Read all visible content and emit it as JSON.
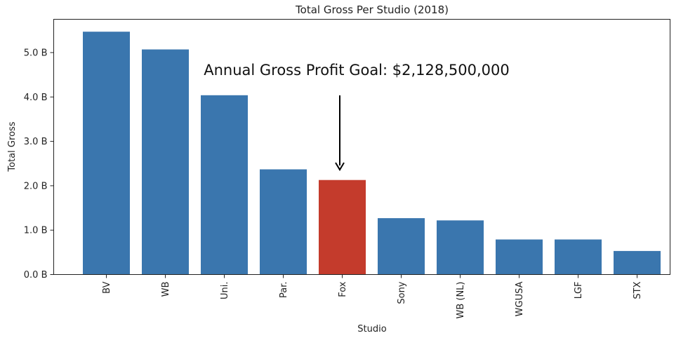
{
  "chart_data": {
    "type": "bar",
    "title": "Total Gross Per Studio (2018)",
    "xlabel": "Studio",
    "ylabel": "Total Gross",
    "categories": [
      "BV",
      "WB",
      "Uni.",
      "Par.",
      "Fox",
      "Sony",
      "WB (NL)",
      "WGUSA",
      "LGF",
      "STX"
    ],
    "values": [
      5.47,
      5.07,
      4.04,
      2.37,
      2.13,
      1.27,
      1.22,
      0.79,
      0.79,
      0.53
    ],
    "value_unit": "B",
    "ylim": [
      0,
      5.75
    ],
    "yticks": [
      0,
      1,
      2,
      3,
      4,
      5
    ],
    "ytick_labels": [
      "0.0 B",
      "1.0 B",
      "2.0 B",
      "3.0 B",
      "4.0 B",
      "5.0 B"
    ],
    "grid": false,
    "highlight_index": 4,
    "colors": {
      "bar": "#3a76ae",
      "highlight": "#c43b2c",
      "axis": "#222222"
    },
    "annotation": {
      "text": "Annual Gross Profit Goal: $2,128,500,000",
      "arrow_target_index": 4
    }
  }
}
